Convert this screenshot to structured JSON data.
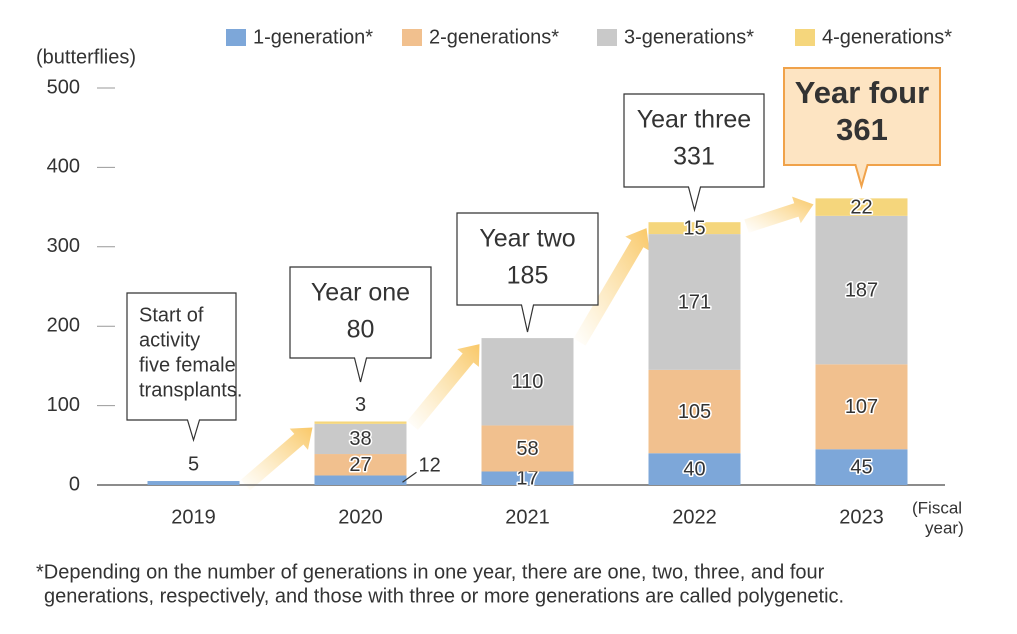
{
  "chart_data": {
    "type": "bar",
    "stacked": true,
    "y_axis_label": "(butterflies)",
    "x_axis_label": [
      "(Fiscal",
      "year)"
    ],
    "categories": [
      "2019",
      "2020",
      "2021",
      "2022",
      "2023"
    ],
    "ylim": [
      0,
      500
    ],
    "yticks": [
      0,
      100,
      200,
      300,
      400,
      500
    ],
    "series": [
      {
        "name": "1-generation*",
        "color": "#7da7d9",
        "values": [
          5,
          12,
          17,
          40,
          45
        ]
      },
      {
        "name": "2-generations*",
        "color": "#f1c08e",
        "values": [
          null,
          27,
          58,
          105,
          107
        ]
      },
      {
        "name": "3-generations*",
        "color": "#c9c9c9",
        "values": [
          null,
          38,
          110,
          171,
          187
        ]
      },
      {
        "name": "4-generations*",
        "color": "#f5d67c",
        "values": [
          null,
          3,
          null,
          15,
          22
        ]
      }
    ],
    "callouts": [
      {
        "lines": [
          "Start of",
          "activity",
          "five female",
          "transplants."
        ]
      },
      {
        "text": "Year one",
        "value": 80
      },
      {
        "text": "Year two",
        "value": 185
      },
      {
        "text": "Year three",
        "value": 331
      },
      {
        "text": "Year four",
        "value": 361
      }
    ],
    "footnote": [
      "*Depending on the number of generations in one year, there are one, two, three, and four",
      "generations, respectively, and those with three or more generations are called polygenetic."
    ]
  }
}
